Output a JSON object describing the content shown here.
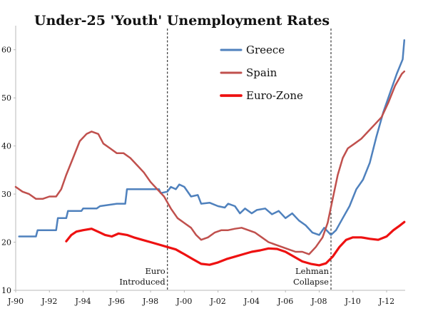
{
  "chart_data": {
    "type": "line",
    "title": "Under-25 'Youth' Unemployment Rates",
    "xlabel": "",
    "ylabel": "",
    "xlim": [
      1990.0,
      2013.1
    ],
    "ylim": [
      10,
      65
    ],
    "y_ticks": [
      10,
      20,
      30,
      40,
      50,
      60
    ],
    "x_ticks": [
      {
        "label": "J-90",
        "x": 1990
      },
      {
        "label": "J-92",
        "x": 1992
      },
      {
        "label": "J-94",
        "x": 1994
      },
      {
        "label": "J-96",
        "x": 1996
      },
      {
        "label": "J-98",
        "x": 1998
      },
      {
        "label": "J-00",
        "x": 2000
      },
      {
        "label": "J-02",
        "x": 2002
      },
      {
        "label": "J-04",
        "x": 2004
      },
      {
        "label": "J-06",
        "x": 2006
      },
      {
        "label": "J-08",
        "x": 2008
      },
      {
        "label": "J-10",
        "x": 2010
      },
      {
        "label": "J-12",
        "x": 2012
      }
    ],
    "series": [
      {
        "name": "Greece",
        "color": "#4f81bd",
        "width": 2.5,
        "points": [
          [
            1990.2,
            21.2
          ],
          [
            1991.2,
            21.2
          ],
          [
            1991.3,
            22.5
          ],
          [
            1992.4,
            22.5
          ],
          [
            1992.5,
            25.0
          ],
          [
            1993.0,
            25.0
          ],
          [
            1993.1,
            26.5
          ],
          [
            1993.9,
            26.5
          ],
          [
            1994.0,
            27.0
          ],
          [
            1994.8,
            27.0
          ],
          [
            1995.0,
            27.5
          ],
          [
            1996.0,
            28.0
          ],
          [
            1996.5,
            28.0
          ],
          [
            1996.6,
            31.0
          ],
          [
            1997.5,
            31.0
          ],
          [
            1998.0,
            31.0
          ],
          [
            1998.5,
            31.0
          ],
          [
            1998.6,
            30.2
          ],
          [
            1999.0,
            30.5
          ],
          [
            1999.2,
            31.5
          ],
          [
            1999.5,
            31.0
          ],
          [
            1999.7,
            32.0
          ],
          [
            2000.0,
            31.5
          ],
          [
            2000.4,
            29.5
          ],
          [
            2000.8,
            29.8
          ],
          [
            2001.0,
            28.0
          ],
          [
            2001.5,
            28.2
          ],
          [
            2002.0,
            27.5
          ],
          [
            2002.4,
            27.2
          ],
          [
            2002.6,
            28.0
          ],
          [
            2003.0,
            27.5
          ],
          [
            2003.3,
            26.0
          ],
          [
            2003.6,
            27.0
          ],
          [
            2004.0,
            26.0
          ],
          [
            2004.3,
            26.7
          ],
          [
            2004.8,
            27.0
          ],
          [
            2005.2,
            25.8
          ],
          [
            2005.6,
            26.5
          ],
          [
            2006.0,
            25.0
          ],
          [
            2006.4,
            26.0
          ],
          [
            2006.8,
            24.5
          ],
          [
            2007.2,
            23.5
          ],
          [
            2007.6,
            22.0
          ],
          [
            2008.0,
            21.5
          ],
          [
            2008.3,
            23.0
          ],
          [
            2008.7,
            21.5
          ],
          [
            2009.0,
            22.5
          ],
          [
            2009.4,
            25.0
          ],
          [
            2009.8,
            27.5
          ],
          [
            2010.2,
            31.0
          ],
          [
            2010.6,
            33.0
          ],
          [
            2011.0,
            36.5
          ],
          [
            2011.4,
            42.0
          ],
          [
            2011.8,
            47.0
          ],
          [
            2012.2,
            51.0
          ],
          [
            2012.6,
            55.0
          ],
          [
            2012.95,
            58.0
          ],
          [
            2013.05,
            62.0
          ]
        ]
      },
      {
        "name": "Spain",
        "color": "#c0504d",
        "width": 2.5,
        "points": [
          [
            1990.0,
            31.5
          ],
          [
            1990.4,
            30.5
          ],
          [
            1990.8,
            30.0
          ],
          [
            1991.2,
            29.0
          ],
          [
            1991.6,
            29.0
          ],
          [
            1992.0,
            29.5
          ],
          [
            1992.4,
            29.5
          ],
          [
            1992.7,
            31.0
          ],
          [
            1993.0,
            34.0
          ],
          [
            1993.4,
            37.5
          ],
          [
            1993.8,
            41.0
          ],
          [
            1994.2,
            42.5
          ],
          [
            1994.5,
            43.0
          ],
          [
            1994.9,
            42.5
          ],
          [
            1995.2,
            40.5
          ],
          [
            1995.6,
            39.5
          ],
          [
            1996.0,
            38.5
          ],
          [
            1996.4,
            38.5
          ],
          [
            1996.8,
            37.5
          ],
          [
            1997.2,
            36.0
          ],
          [
            1997.6,
            34.5
          ],
          [
            1998.0,
            32.5
          ],
          [
            1998.4,
            31.0
          ],
          [
            1998.8,
            29.5
          ],
          [
            1999.2,
            27.0
          ],
          [
            1999.6,
            25.0
          ],
          [
            2000.0,
            24.0
          ],
          [
            2000.4,
            23.0
          ],
          [
            2000.7,
            21.5
          ],
          [
            2001.0,
            20.5
          ],
          [
            2001.4,
            21.0
          ],
          [
            2001.8,
            22.0
          ],
          [
            2002.2,
            22.5
          ],
          [
            2002.6,
            22.5
          ],
          [
            2003.0,
            22.8
          ],
          [
            2003.4,
            23.0
          ],
          [
            2003.8,
            22.5
          ],
          [
            2004.2,
            22.0
          ],
          [
            2004.6,
            21.0
          ],
          [
            2005.0,
            20.0
          ],
          [
            2005.4,
            19.5
          ],
          [
            2005.8,
            19.0
          ],
          [
            2006.2,
            18.5
          ],
          [
            2006.6,
            18.0
          ],
          [
            2007.0,
            18.0
          ],
          [
            2007.4,
            17.5
          ],
          [
            2007.8,
            19.0
          ],
          [
            2008.2,
            21.0
          ],
          [
            2008.5,
            24.0
          ],
          [
            2008.8,
            29.0
          ],
          [
            2009.1,
            34.0
          ],
          [
            2009.4,
            37.5
          ],
          [
            2009.7,
            39.5
          ],
          [
            2010.1,
            40.5
          ],
          [
            2010.5,
            41.5
          ],
          [
            2010.9,
            43.0
          ],
          [
            2011.3,
            44.5
          ],
          [
            2011.7,
            46.0
          ],
          [
            2012.1,
            49.0
          ],
          [
            2012.5,
            52.5
          ],
          [
            2012.9,
            55.0
          ],
          [
            2013.05,
            55.5
          ]
        ]
      },
      {
        "name": "Euro-Zone",
        "color": "#ee1111",
        "width": 3.2,
        "points": [
          [
            1993.0,
            20.2
          ],
          [
            1993.3,
            21.5
          ],
          [
            1993.6,
            22.2
          ],
          [
            1994.0,
            22.5
          ],
          [
            1994.5,
            22.8
          ],
          [
            1995.0,
            22.0
          ],
          [
            1995.3,
            21.5
          ],
          [
            1995.7,
            21.2
          ],
          [
            1996.1,
            21.8
          ],
          [
            1996.6,
            21.5
          ],
          [
            1997.0,
            21.0
          ],
          [
            1997.5,
            20.5
          ],
          [
            1998.0,
            20.0
          ],
          [
            1998.5,
            19.5
          ],
          [
            1999.0,
            19.0
          ],
          [
            1999.5,
            18.5
          ],
          [
            2000.0,
            17.5
          ],
          [
            2000.5,
            16.5
          ],
          [
            2001.0,
            15.5
          ],
          [
            2001.5,
            15.3
          ],
          [
            2002.0,
            15.8
          ],
          [
            2002.5,
            16.5
          ],
          [
            2003.0,
            17.0
          ],
          [
            2003.5,
            17.5
          ],
          [
            2004.0,
            18.0
          ],
          [
            2004.5,
            18.3
          ],
          [
            2005.0,
            18.7
          ],
          [
            2005.5,
            18.6
          ],
          [
            2006.0,
            18.0
          ],
          [
            2006.5,
            17.0
          ],
          [
            2007.0,
            16.0
          ],
          [
            2007.5,
            15.5
          ],
          [
            2008.0,
            15.2
          ],
          [
            2008.4,
            15.6
          ],
          [
            2008.8,
            17.0
          ],
          [
            2009.2,
            19.0
          ],
          [
            2009.6,
            20.5
          ],
          [
            2010.0,
            21.0
          ],
          [
            2010.5,
            21.0
          ],
          [
            2011.0,
            20.7
          ],
          [
            2011.5,
            20.5
          ],
          [
            2012.0,
            21.2
          ],
          [
            2012.4,
            22.5
          ],
          [
            2012.8,
            23.5
          ],
          [
            2013.05,
            24.2
          ]
        ]
      }
    ],
    "vlines": [
      {
        "x": 1999.0,
        "label_lines": [
          "Euro",
          "Introduced"
        ]
      },
      {
        "x": 2008.7,
        "label_lines": [
          "Lehman",
          "Collapse"
        ]
      }
    ]
  }
}
